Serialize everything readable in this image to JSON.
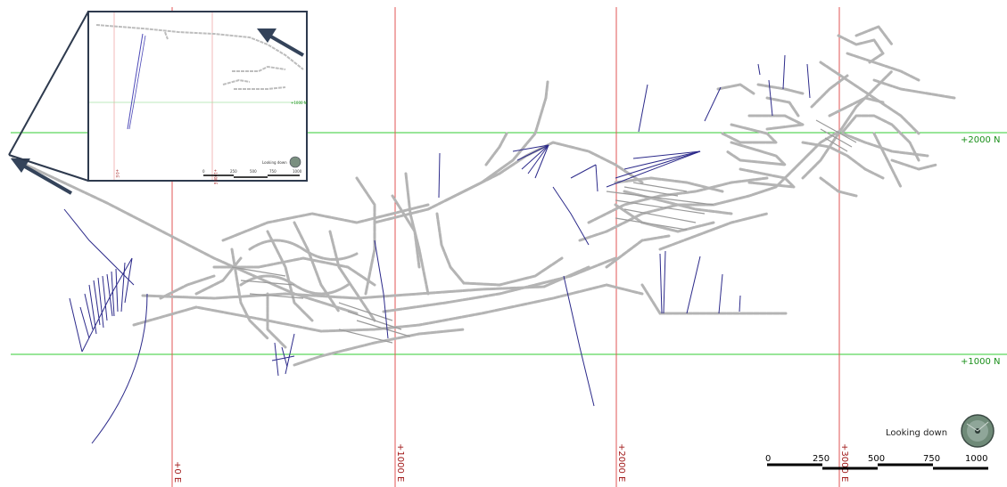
{
  "grid": {
    "easting_labels": [
      "+0 E",
      "+1000 E",
      "+2000 E",
      "+3000 E"
    ],
    "northing_labels": [
      "+2000 N",
      "+1000 N"
    ],
    "easting_color": "#e25555",
    "northing_color": "#33cc33"
  },
  "view": {
    "label": "Looking down",
    "compass_icon": "compass-ball-icon"
  },
  "scale_bar": {
    "ticks": [
      "0",
      "250",
      "500",
      "750",
      "1000"
    ]
  },
  "inset": {
    "view_label": "Looking down",
    "scale_ticks": [
      "0",
      "250",
      "500",
      "750",
      "1000"
    ],
    "arrow_icon": "direction-arrow-icon"
  },
  "colors": {
    "tunnels": "#b4b4b4",
    "drillholes": "#2c2a8a",
    "inset_border": "#2e3a4e",
    "arrow": "#34435a"
  }
}
